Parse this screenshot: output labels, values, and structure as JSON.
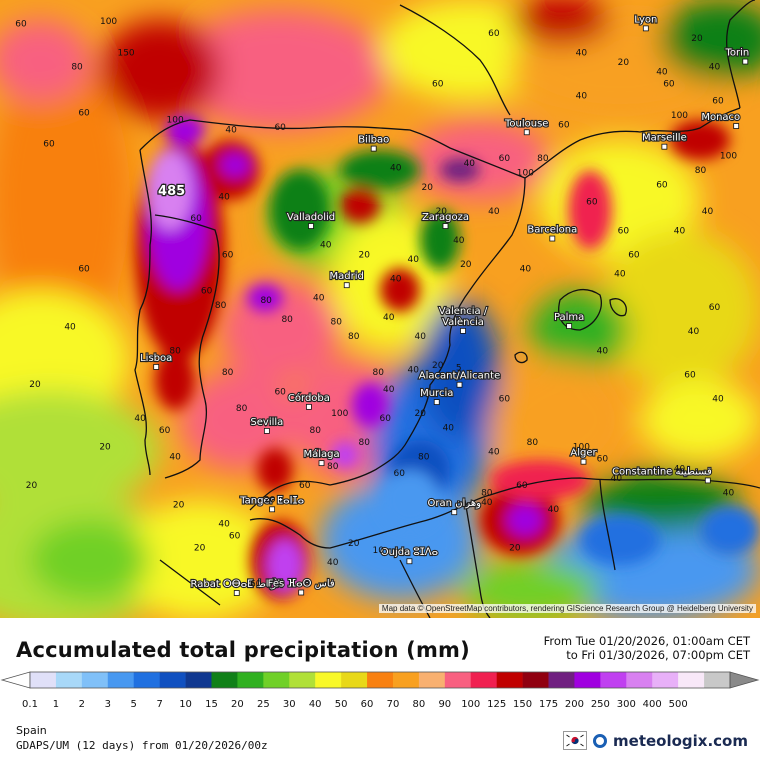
{
  "map": {
    "cities": [
      {
        "name": "Lyon",
        "lon": 4.84,
        "lat": 45.76
      },
      {
        "name": "Torin",
        "lon": 7.68,
        "lat": 45.07
      },
      {
        "name": "Monaco",
        "lon": 7.42,
        "lat": 43.73
      },
      {
        "name": "Toulouse",
        "lon": 1.44,
        "lat": 43.6
      },
      {
        "name": "Marseille",
        "lon": 5.37,
        "lat": 43.3
      },
      {
        "name": "Bilbao",
        "lon": -2.93,
        "lat": 43.26
      },
      {
        "name": "Valladolid",
        "lon": -4.72,
        "lat": 41.65
      },
      {
        "name": "Zaragoza",
        "lon": -0.88,
        "lat": 41.65
      },
      {
        "name": "Barcelona",
        "lon": 2.17,
        "lat": 41.39
      },
      {
        "name": "Madrid",
        "lon": -3.7,
        "lat": 40.42
      },
      {
        "name": "Valencia / València",
        "lon": -0.38,
        "lat": 39.47
      },
      {
        "name": "Palma",
        "lon": 2.65,
        "lat": 39.57
      },
      {
        "name": "Lisboa",
        "lon": -9.14,
        "lat": 38.72
      },
      {
        "name": "Alacant/Alicante",
        "lon": -0.48,
        "lat": 38.35
      },
      {
        "name": "Murcia",
        "lon": -1.13,
        "lat": 37.99
      },
      {
        "name": "Córdoba",
        "lon": -4.78,
        "lat": 37.89
      },
      {
        "name": "Sevilla",
        "lon": -5.98,
        "lat": 37.39
      },
      {
        "name": "Málaga",
        "lon": -4.42,
        "lat": 36.72
      },
      {
        "name": "Alger",
        "lon": 3.06,
        "lat": 36.75
      },
      {
        "name": "Constantine قسنطينة",
        "lon": 6.61,
        "lat": 36.36
      },
      {
        "name": "Tanger ⵟⴰⵏⵊⴰ",
        "lon": -5.83,
        "lat": 35.76
      },
      {
        "name": "Oran وهران",
        "lon": -0.63,
        "lat": 35.7
      },
      {
        "name": "Oujda ⵓⵊⴷⴰ",
        "lon": -1.91,
        "lat": 34.68
      },
      {
        "name": "Rabat ⵔⴱⴰⵟ الرباط",
        "lon": -6.84,
        "lat": 34.02
      },
      {
        "name": "Fès ⴼⴰⵙ فاس",
        "lon": -5.0,
        "lat": 34.03
      }
    ],
    "values": [
      {
        "v": "60",
        "lon": -13.0,
        "lat": 45.8
      },
      {
        "v": "100",
        "lon": -10.5,
        "lat": 45.85
      },
      {
        "v": "80",
        "lon": -11.4,
        "lat": 44.9
      },
      {
        "v": "150",
        "lon": -10.0,
        "lat": 45.2
      },
      {
        "v": "100",
        "lon": -8.6,
        "lat": 43.8
      },
      {
        "v": "60",
        "lon": -11.2,
        "lat": 43.95
      },
      {
        "v": "60",
        "lon": -12.2,
        "lat": 43.3
      },
      {
        "v": "40",
        "lon": -7.0,
        "lat": 43.6
      },
      {
        "v": "60",
        "lon": -5.6,
        "lat": 43.65
      },
      {
        "v": "60",
        "lon": 0.5,
        "lat": 45.6
      },
      {
        "v": "60",
        "lon": -1.1,
        "lat": 44.55
      },
      {
        "v": "40",
        "lon": 3.0,
        "lat": 45.2
      },
      {
        "v": "20",
        "lon": 4.2,
        "lat": 45.0
      },
      {
        "v": "40",
        "lon": 3.0,
        "lat": 44.3
      },
      {
        "v": "20",
        "lon": 6.3,
        "lat": 45.5
      },
      {
        "v": "40",
        "lon": 6.8,
        "lat": 44.9
      },
      {
        "v": "60",
        "lon": 5.5,
        "lat": 44.55
      },
      {
        "v": "100",
        "lon": 5.8,
        "lat": 43.9
      },
      {
        "v": "60",
        "lon": 6.9,
        "lat": 44.2
      },
      {
        "v": "40",
        "lon": 5.3,
        "lat": 44.8
      },
      {
        "v": "60",
        "lon": 2.5,
        "lat": 43.7
      },
      {
        "v": "60",
        "lon": 0.8,
        "lat": 43.0
      },
      {
        "v": "80",
        "lon": 1.9,
        "lat": 43.0
      },
      {
        "v": "100",
        "lon": 1.4,
        "lat": 42.7
      },
      {
        "v": "60",
        "lon": 5.3,
        "lat": 42.45
      },
      {
        "v": "80",
        "lon": 6.4,
        "lat": 42.75
      },
      {
        "v": "100",
        "lon": 7.2,
        "lat": 43.05
      },
      {
        "v": "60",
        "lon": 3.3,
        "lat": 42.1
      },
      {
        "v": "60",
        "lon": 4.2,
        "lat": 41.5
      },
      {
        "v": "40",
        "lon": 5.8,
        "lat": 41.5
      },
      {
        "v": "40",
        "lon": 6.6,
        "lat": 41.9
      },
      {
        "v": "60",
        "lon": 4.5,
        "lat": 41.0
      },
      {
        "v": "40",
        "lon": 4.1,
        "lat": 40.6
      },
      {
        "v": "40",
        "lon": 6.2,
        "lat": 39.4
      },
      {
        "v": "60",
        "lon": 6.8,
        "lat": 39.9
      },
      {
        "v": "60",
        "lon": 6.1,
        "lat": 38.5
      },
      {
        "v": "40",
        "lon": 6.9,
        "lat": 38.0
      },
      {
        "v": "40",
        "lon": 3.6,
        "lat": 39.0
      },
      {
        "v": "40",
        "lon": 1.4,
        "lat": 40.7
      },
      {
        "v": "40",
        "lon": -0.2,
        "lat": 42.9
      },
      {
        "v": "40",
        "lon": -2.3,
        "lat": 42.8
      },
      {
        "v": "20",
        "lon": -1.4,
        "lat": 42.4
      },
      {
        "v": "20",
        "lon": -1.0,
        "lat": 41.9
      },
      {
        "v": "40",
        "lon": -0.5,
        "lat": 41.3
      },
      {
        "v": "40",
        "lon": 0.5,
        "lat": 41.9
      },
      {
        "v": "20",
        "lon": -0.3,
        "lat": 40.8
      },
      {
        "v": "40",
        "lon": -1.8,
        "lat": 40.9
      },
      {
        "v": "40",
        "lon": -2.3,
        "lat": 40.5
      },
      {
        "v": "20",
        "lon": -3.2,
        "lat": 41.0
      },
      {
        "v": "40",
        "lon": -4.3,
        "lat": 41.2
      },
      {
        "v": "40",
        "lon": -4.5,
        "lat": 40.1
      },
      {
        "v": "40",
        "lon": -2.5,
        "lat": 39.7
      },
      {
        "v": "40",
        "lon": -1.6,
        "lat": 39.3
      },
      {
        "v": "40",
        "lon": -1.8,
        "lat": 38.6
      },
      {
        "v": "20",
        "lon": -1.1,
        "lat": 38.7
      },
      {
        "v": "5",
        "lon": -0.5,
        "lat": 38.65
      },
      {
        "v": "40",
        "lon": -0.8,
        "lat": 37.4
      },
      {
        "v": "40",
        "lon": -2.5,
        "lat": 38.2
      },
      {
        "v": "80",
        "lon": -2.8,
        "lat": 38.55
      },
      {
        "v": "100",
        "lon": -3.9,
        "lat": 37.7
      },
      {
        "v": "60",
        "lon": -2.6,
        "lat": 37.6
      },
      {
        "v": "80",
        "lon": -3.2,
        "lat": 37.1
      },
      {
        "v": "80",
        "lon": -4.1,
        "lat": 36.6
      },
      {
        "v": "20",
        "lon": -1.6,
        "lat": 37.7
      },
      {
        "v": "80",
        "lon": -3.5,
        "lat": 39.3
      },
      {
        "v": "80",
        "lon": -4.0,
        "lat": 39.6
      },
      {
        "v": "80",
        "lon": -5.4,
        "lat": 39.65
      },
      {
        "v": "80",
        "lon": -6.0,
        "lat": 40.05
      },
      {
        "v": "80",
        "lon": -7.3,
        "lat": 39.95
      },
      {
        "v": "60",
        "lon": -7.7,
        "lat": 40.25
      },
      {
        "v": "60",
        "lon": -5.6,
        "lat": 38.15
      },
      {
        "v": "80",
        "lon": -7.1,
        "lat": 38.55
      },
      {
        "v": "80",
        "lon": -6.7,
        "lat": 37.8
      },
      {
        "v": "80",
        "lon": -8.6,
        "lat": 39.0
      },
      {
        "v": "60",
        "lon": -8.0,
        "lat": 41.75
      },
      {
        "v": "40",
        "lon": -7.2,
        "lat": 42.2
      },
      {
        "v": "60",
        "lon": -7.1,
        "lat": 41.0
      },
      {
        "v": "485",
        "lon": -8.7,
        "lat": 42.3
      },
      {
        "v": "40",
        "lon": -9.6,
        "lat": 37.6
      },
      {
        "v": "60",
        "lon": -8.9,
        "lat": 37.35
      },
      {
        "v": "40",
        "lon": -8.6,
        "lat": 36.8
      },
      {
        "v": "40",
        "lon": -11.6,
        "lat": 39.5
      },
      {
        "v": "60",
        "lon": -11.2,
        "lat": 40.7
      },
      {
        "v": "20",
        "lon": -12.6,
        "lat": 38.3
      },
      {
        "v": "20",
        "lon": -10.6,
        "lat": 37.0
      },
      {
        "v": "20",
        "lon": -12.7,
        "lat": 36.2
      },
      {
        "v": "20",
        "lon": -8.5,
        "lat": 35.8
      },
      {
        "v": "40",
        "lon": -7.2,
        "lat": 35.4
      },
      {
        "v": "60",
        "lon": -6.9,
        "lat": 35.15
      },
      {
        "v": "20",
        "lon": -7.9,
        "lat": 34.9
      },
      {
        "v": "60",
        "lon": -6.3,
        "lat": 34.15
      },
      {
        "v": "40",
        "lon": -4.1,
        "lat": 34.6
      },
      {
        "v": "20",
        "lon": -3.5,
        "lat": 35.0
      },
      {
        "v": "10",
        "lon": -2.8,
        "lat": 34.85
      },
      {
        "v": "40",
        "lon": 0.3,
        "lat": 35.85
      },
      {
        "v": "80",
        "lon": 0.3,
        "lat": 36.05
      },
      {
        "v": "60",
        "lon": 1.3,
        "lat": 36.2
      },
      {
        "v": "60",
        "lon": 3.6,
        "lat": 36.75
      },
      {
        "v": "100",
        "lon": 3.0,
        "lat": 37.0
      },
      {
        "v": "80",
        "lon": 1.6,
        "lat": 37.1
      },
      {
        "v": "40",
        "lon": 2.2,
        "lat": 35.7
      },
      {
        "v": "20",
        "lon": 1.1,
        "lat": 34.9
      },
      {
        "v": "40",
        "lon": 4.0,
        "lat": 36.35
      },
      {
        "v": "40",
        "lon": 5.8,
        "lat": 36.55
      },
      {
        "v": "40",
        "lon": 7.2,
        "lat": 36.05
      },
      {
        "v": "60",
        "lon": 0.8,
        "lat": 38.0
      },
      {
        "v": "40",
        "lon": 0.5,
        "lat": 36.9
      },
      {
        "v": "80",
        "lon": -1.5,
        "lat": 36.8
      },
      {
        "v": "60",
        "lon": -2.2,
        "lat": 36.45
      },
      {
        "v": "80",
        "lon": -4.6,
        "lat": 37.35
      },
      {
        "v": "60",
        "lon": -4.9,
        "lat": 36.2
      },
      {
        "v": "20",
        "lon": -5.9,
        "lat": 35.9
      }
    ]
  },
  "attribution": "Map data © OpenStreetMap contributors, rendering GIScience Research Group @ Heidelberg University",
  "title": "Accumulated total precipitation (mm)",
  "period": {
    "from": "From Tue 01/20/2026, 01:00am CET",
    "to": "to Fri 01/30/2026, 07:00pm CET"
  },
  "legend": {
    "colors": [
      "#e0e0f8",
      "#a8d8f8",
      "#80c0f8",
      "#4898f0",
      "#2070e0",
      "#1050c0",
      "#103890",
      "#108018",
      "#30b020",
      "#70d028",
      "#b0e038",
      "#f8f828",
      "#e8d818",
      "#f88010",
      "#f8a020",
      "#f8b070",
      "#f86080",
      "#f02050",
      "#c00000",
      "#900010",
      "#702080",
      "#a000e0",
      "#c040f0",
      "#d880f0",
      "#e8b0f8",
      "#f8e8f8",
      "#c8c8c8"
    ],
    "labels": [
      "0.1",
      "1",
      "2",
      "3",
      "5",
      "7",
      "10",
      "15",
      "20",
      "25",
      "30",
      "40",
      "50",
      "60",
      "70",
      "80",
      "90",
      "100",
      "125",
      "150",
      "175",
      "200",
      "250",
      "300",
      "400",
      "500"
    ]
  },
  "region": "Spain",
  "model": "GDAPS/UM (12 days) from 01/20/2026/00z",
  "brand": {
    "name": "meteologix.com"
  }
}
